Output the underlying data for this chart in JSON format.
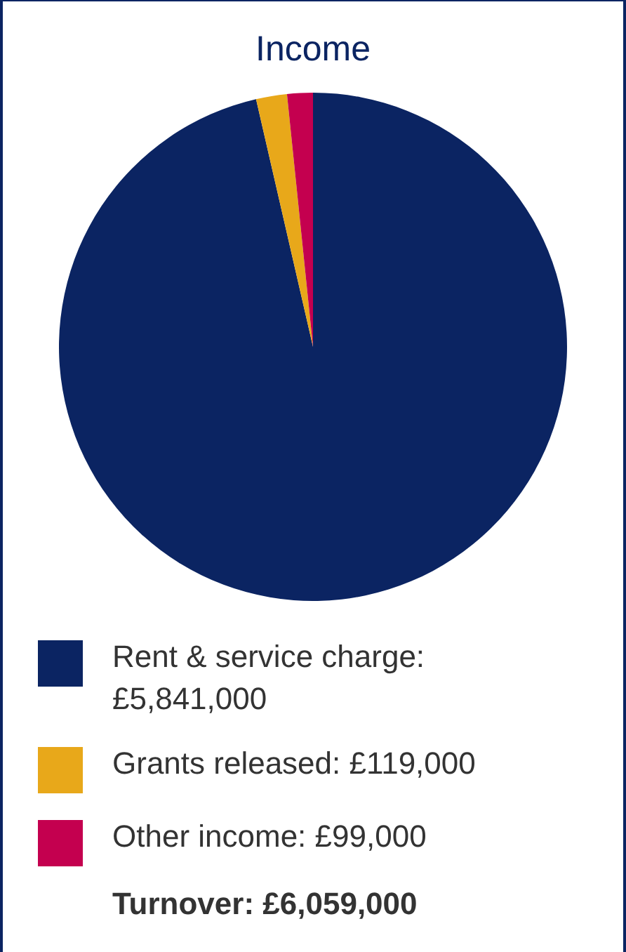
{
  "chart_data": {
    "type": "pie",
    "title": "Income",
    "categories": [
      "Rent & service charge: £5,841,000",
      "Grants released: £119,000",
      "Other income: £99,000"
    ],
    "values": [
      5841000,
      119000,
      99000
    ],
    "colors": [
      "#0b2462",
      "#e8a81a",
      "#c4004f"
    ],
    "legend": "bottom",
    "annotations": [
      "Turnover: £6,059,000"
    ]
  }
}
